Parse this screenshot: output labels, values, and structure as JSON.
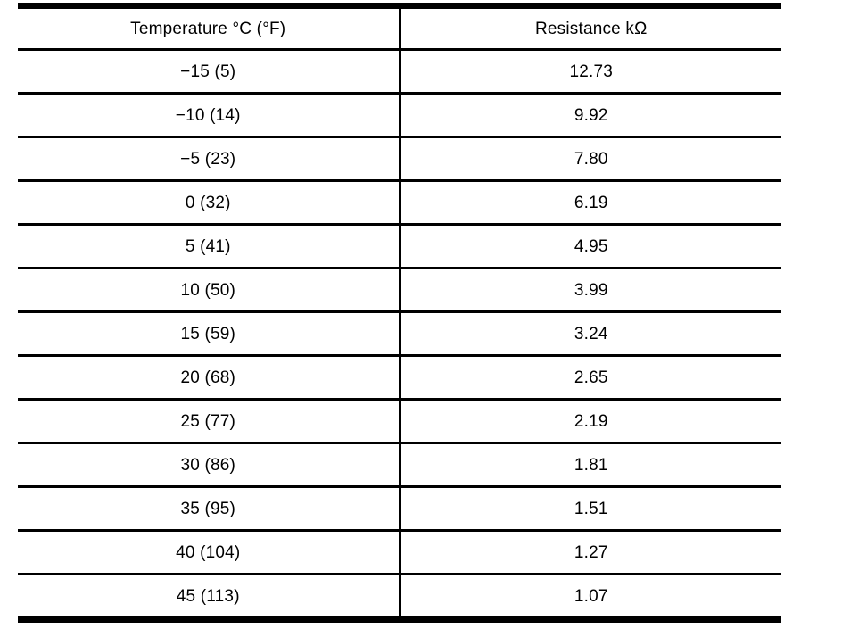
{
  "document": {
    "background_color": "#ffffff",
    "line_color": "#000000",
    "text_color": "#000000"
  },
  "chart_data": {
    "type": "table",
    "columns": [
      "Temperature °C (°F)",
      "Resistance kΩ"
    ],
    "rows": [
      [
        "−15 (5)",
        "12.73"
      ],
      [
        "−10 (14)",
        "9.92"
      ],
      [
        "−5 (23)",
        "7.80"
      ],
      [
        "0 (32)",
        "6.19"
      ],
      [
        "5 (41)",
        "4.95"
      ],
      [
        "10 (50)",
        "3.99"
      ],
      [
        "15 (59)",
        "3.24"
      ],
      [
        "20 (68)",
        "2.65"
      ],
      [
        "25 (77)",
        "2.19"
      ],
      [
        "30 (86)",
        "1.81"
      ],
      [
        "35 (95)",
        "1.51"
      ],
      [
        "40 (104)",
        "1.27"
      ],
      [
        "45 (113)",
        "1.07"
      ]
    ]
  }
}
